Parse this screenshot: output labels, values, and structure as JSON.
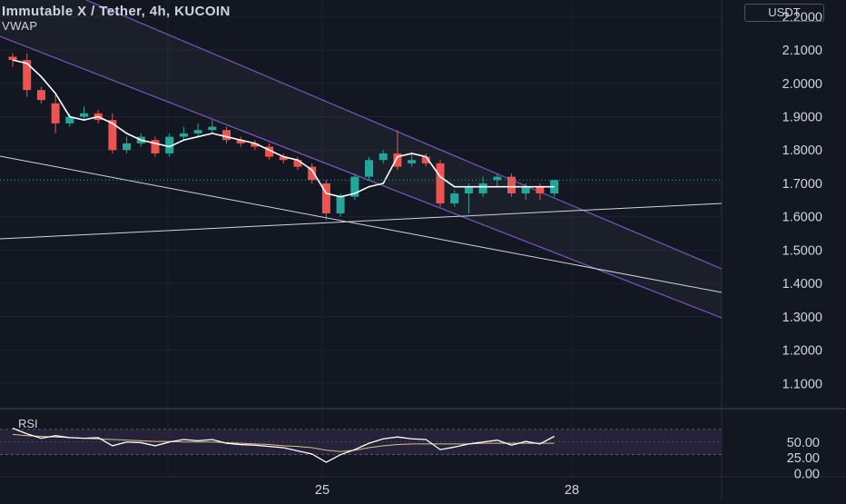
{
  "header": {
    "title": "Immutable X / Tether, 4h, KUCOIN",
    "indicator": "VWAP",
    "currency_button": "USDT"
  },
  "rsi_panel": {
    "label": "RSI",
    "ticks": [
      "50.00",
      "25.00",
      "0.00"
    ]
  },
  "x_axis": {
    "ticks": [
      "25",
      "28"
    ]
  },
  "colors": {
    "background": "#131722",
    "up": "#26a69a",
    "down": "#ef5350",
    "vwap": "#ffffff",
    "channel": "#7e57c2",
    "trendline": "#d1d4dc",
    "rsi_band": "#2a2540"
  },
  "chart_data": {
    "type": "candlestick",
    "title": "Immutable X / Tether, 4h, KUCOIN",
    "y_ticks": [
      "2.2000",
      "2.1000",
      "2.0000",
      "1.9000",
      "1.8000",
      "1.7000",
      "1.6000",
      "1.5000",
      "1.4000",
      "1.3000",
      "1.2000",
      "1.1000"
    ],
    "ylim": [
      1.03,
      2.25
    ],
    "current_price": 1.71,
    "candles": [
      {
        "o": 2.08,
        "h": 2.09,
        "l": 2.05,
        "c": 2.07
      },
      {
        "o": 2.07,
        "h": 2.09,
        "l": 1.96,
        "c": 1.98
      },
      {
        "o": 1.98,
        "h": 1.99,
        "l": 1.94,
        "c": 1.95
      },
      {
        "o": 1.94,
        "h": 1.97,
        "l": 1.85,
        "c": 1.88
      },
      {
        "o": 1.88,
        "h": 1.91,
        "l": 1.87,
        "c": 1.9
      },
      {
        "o": 1.9,
        "h": 1.93,
        "l": 1.89,
        "c": 1.91
      },
      {
        "o": 1.91,
        "h": 1.92,
        "l": 1.88,
        "c": 1.89
      },
      {
        "o": 1.89,
        "h": 1.91,
        "l": 1.79,
        "c": 1.8
      },
      {
        "o": 1.8,
        "h": 1.84,
        "l": 1.79,
        "c": 1.82
      },
      {
        "o": 1.82,
        "h": 1.85,
        "l": 1.81,
        "c": 1.84
      },
      {
        "o": 1.83,
        "h": 1.84,
        "l": 1.78,
        "c": 1.79
      },
      {
        "o": 1.79,
        "h": 1.85,
        "l": 1.78,
        "c": 1.84
      },
      {
        "o": 1.84,
        "h": 1.87,
        "l": 1.83,
        "c": 1.85
      },
      {
        "o": 1.85,
        "h": 1.88,
        "l": 1.84,
        "c": 1.86
      },
      {
        "o": 1.86,
        "h": 1.89,
        "l": 1.85,
        "c": 1.87
      },
      {
        "o": 1.86,
        "h": 1.87,
        "l": 1.82,
        "c": 1.83
      },
      {
        "o": 1.83,
        "h": 1.84,
        "l": 1.81,
        "c": 1.82
      },
      {
        "o": 1.82,
        "h": 1.83,
        "l": 1.8,
        "c": 1.81
      },
      {
        "o": 1.81,
        "h": 1.82,
        "l": 1.77,
        "c": 1.78
      },
      {
        "o": 1.78,
        "h": 1.79,
        "l": 1.76,
        "c": 1.77
      },
      {
        "o": 1.77,
        "h": 1.78,
        "l": 1.74,
        "c": 1.75
      },
      {
        "o": 1.75,
        "h": 1.76,
        "l": 1.7,
        "c": 1.71
      },
      {
        "o": 1.7,
        "h": 1.71,
        "l": 1.59,
        "c": 1.61
      },
      {
        "o": 1.61,
        "h": 1.67,
        "l": 1.6,
        "c": 1.66
      },
      {
        "o": 1.66,
        "h": 1.73,
        "l": 1.65,
        "c": 1.72
      },
      {
        "o": 1.72,
        "h": 1.78,
        "l": 1.71,
        "c": 1.77
      },
      {
        "o": 1.77,
        "h": 1.8,
        "l": 1.76,
        "c": 1.79
      },
      {
        "o": 1.79,
        "h": 1.86,
        "l": 1.74,
        "c": 1.75
      },
      {
        "o": 1.76,
        "h": 1.79,
        "l": 1.75,
        "c": 1.77
      },
      {
        "o": 1.78,
        "h": 1.79,
        "l": 1.75,
        "c": 1.76
      },
      {
        "o": 1.76,
        "h": 1.77,
        "l": 1.63,
        "c": 1.64
      },
      {
        "o": 1.64,
        "h": 1.68,
        "l": 1.63,
        "c": 1.67
      },
      {
        "o": 1.67,
        "h": 1.7,
        "l": 1.61,
        "c": 1.69
      },
      {
        "o": 1.67,
        "h": 1.72,
        "l": 1.66,
        "c": 1.7
      },
      {
        "o": 1.71,
        "h": 1.73,
        "l": 1.69,
        "c": 1.72
      },
      {
        "o": 1.72,
        "h": 1.73,
        "l": 1.66,
        "c": 1.67
      },
      {
        "o": 1.67,
        "h": 1.7,
        "l": 1.65,
        "c": 1.69
      },
      {
        "o": 1.69,
        "h": 1.7,
        "l": 1.65,
        "c": 1.67
      },
      {
        "o": 1.67,
        "h": 1.71,
        "l": 1.66,
        "c": 1.71
      }
    ],
    "vwap": [
      2.07,
      2.06,
      2.02,
      1.97,
      1.9,
      1.89,
      1.9,
      1.88,
      1.85,
      1.83,
      1.82,
      1.81,
      1.83,
      1.84,
      1.85,
      1.84,
      1.83,
      1.82,
      1.8,
      1.78,
      1.77,
      1.74,
      1.67,
      1.66,
      1.67,
      1.69,
      1.7,
      1.78,
      1.79,
      1.78,
      1.72,
      1.69,
      1.69,
      1.69,
      1.69,
      1.69,
      1.69,
      1.69,
      1.69
    ],
    "rsi": [
      72,
      63,
      56,
      60,
      57,
      56,
      57,
      44,
      50,
      49,
      44,
      50,
      54,
      52,
      54,
      48,
      46,
      45,
      43,
      41,
      36,
      31,
      18,
      30,
      38,
      48,
      55,
      58,
      55,
      54,
      38,
      42,
      47,
      50,
      53,
      45,
      51,
      47,
      59
    ],
    "rsi_ma": [
      62,
      60,
      59,
      58,
      57,
      56,
      55,
      54,
      53,
      52,
      51,
      51,
      50,
      50,
      50,
      49,
      48,
      47,
      46,
      44,
      43,
      41,
      37,
      35,
      37,
      41,
      44,
      46,
      47,
      47,
      47,
      47,
      47,
      48,
      48,
      48,
      48,
      48,
      48
    ],
    "rsi_ylim": [
      -5,
      100
    ],
    "rsi_band": [
      30,
      70
    ],
    "rsi_ticks": [
      50,
      25,
      0
    ]
  }
}
